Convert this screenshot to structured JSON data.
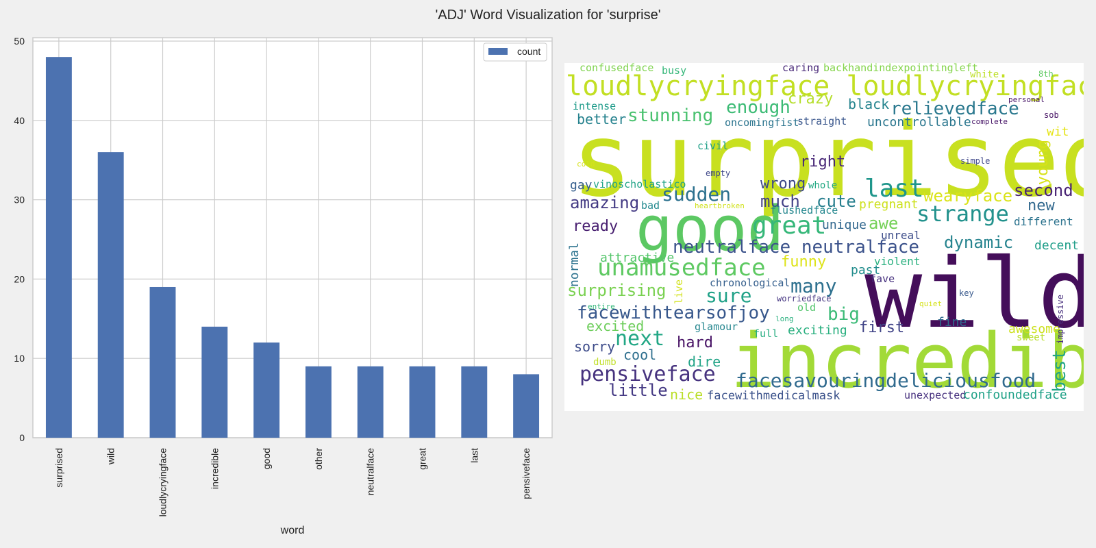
{
  "title": "'ADJ' Word Visualization for 'surprise'",
  "chart_data": [
    {
      "type": "bar",
      "categories": [
        "surprised",
        "wild",
        "loudlycryingface",
        "incredible",
        "good",
        "other",
        "neutralface",
        "great",
        "last",
        "pensiveface"
      ],
      "series": [
        {
          "name": "count",
          "values": [
            48,
            36,
            19,
            14,
            12,
            9,
            9,
            9,
            9,
            8
          ]
        }
      ],
      "xlabel": "word",
      "ylabel": "",
      "ylim": [
        0,
        50
      ],
      "yticks": [
        0,
        10,
        20,
        30,
        40,
        50
      ],
      "grid": true,
      "legend": "top-right",
      "bar_color": "#4c72b0"
    },
    {
      "type": "wordcloud",
      "background": "#ffffff",
      "words": [
        {
          "text": "surprised",
          "color": "#c8e020"
        },
        {
          "text": "wild",
          "color": "#440e5a"
        },
        {
          "text": "incredible",
          "color": "#a2da37"
        },
        {
          "text": "good",
          "color": "#5cc863"
        },
        {
          "text": "loudlycryingface loudlycryingface",
          "color": "#c2df23"
        },
        {
          "text": "great",
          "color": "#35b779"
        },
        {
          "text": "last",
          "color": "#1f968b"
        },
        {
          "text": "strange",
          "color": "#21918c"
        },
        {
          "text": "unamusedface",
          "color": "#5ec962"
        },
        {
          "text": "neutralface neutralface",
          "color": "#3b528b"
        },
        {
          "text": "pensiveface",
          "color": "#46327e"
        },
        {
          "text": "facesavouringdeliciousfood",
          "color": "#306a8e"
        },
        {
          "text": "facewithtearsofjoy",
          "color": "#38588c"
        },
        {
          "text": "stunning",
          "color": "#48c16e"
        },
        {
          "text": "enough",
          "color": "#3cbb75"
        },
        {
          "text": "relievedface",
          "color": "#2a788e"
        },
        {
          "text": "sudden",
          "color": "#2c718e"
        },
        {
          "text": "amazing",
          "color": "#443b84"
        },
        {
          "text": "wearyface",
          "color": "#dae319"
        },
        {
          "text": "second",
          "color": "#482374"
        },
        {
          "text": "crazy",
          "color": "#b5de2b"
        },
        {
          "text": "better",
          "color": "#26828e"
        },
        {
          "text": "black",
          "color": "#25848e"
        },
        {
          "text": "uncontrollable",
          "color": "#2a768e"
        },
        {
          "text": "young",
          "color": "#d8e219"
        },
        {
          "text": "wit",
          "color": "#e5e419"
        },
        {
          "text": "wrong",
          "color": "#3e4989"
        },
        {
          "text": "right",
          "color": "#482777"
        },
        {
          "text": "much",
          "color": "#424086"
        },
        {
          "text": "cute",
          "color": "#277f8e"
        },
        {
          "text": "awe",
          "color": "#73d056"
        },
        {
          "text": "new",
          "color": "#31688e"
        },
        {
          "text": "ready",
          "color": "#481f70"
        },
        {
          "text": "dynamic",
          "color": "#25838e"
        },
        {
          "text": "decent",
          "color": "#1f9e89"
        },
        {
          "text": "sure",
          "color": "#1fa187"
        },
        {
          "text": "many",
          "color": "#2d708e"
        },
        {
          "text": "surprising",
          "color": "#7ad151"
        },
        {
          "text": "big",
          "color": "#3aba76"
        },
        {
          "text": "funny",
          "color": "#dde318"
        },
        {
          "text": "next",
          "color": "#22a785"
        },
        {
          "text": "hard",
          "color": "#471164"
        },
        {
          "text": "first",
          "color": "#414487"
        },
        {
          "text": "best",
          "color": "#20a486"
        },
        {
          "text": "excited",
          "color": "#6ccd5a"
        },
        {
          "text": "exciting",
          "color": "#29af7f"
        },
        {
          "text": "sorry",
          "color": "#3e4c8a"
        },
        {
          "text": "cool",
          "color": "#2e6f8e"
        },
        {
          "text": "dire",
          "color": "#20a386"
        },
        {
          "text": "little",
          "color": "#443983"
        },
        {
          "text": "nice",
          "color": "#bade28"
        },
        {
          "text": "awesome",
          "color": "#cde11d"
        },
        {
          "text": "sweet",
          "color": "#b8de29"
        },
        {
          "text": "fine",
          "color": "#2f6b8e"
        },
        {
          "text": "attractive",
          "color": "#52c569"
        },
        {
          "text": "past",
          "color": "#228d8d"
        },
        {
          "text": "violent",
          "color": "#2ab07f"
        },
        {
          "text": "normal",
          "color": "#2c728e"
        },
        {
          "text": "chronological",
          "color": "#355f8d"
        },
        {
          "text": "unique",
          "color": "#31678e"
        },
        {
          "text": "unreal",
          "color": "#3d4d8a"
        },
        {
          "text": "different",
          "color": "#2c738e"
        },
        {
          "text": "pregnant",
          "color": "#cde11d"
        },
        {
          "text": "flushedface",
          "color": "#24878e"
        },
        {
          "text": "heartbroken",
          "color": "#d0e11c"
        },
        {
          "text": "bad",
          "color": "#23898e"
        },
        {
          "text": "gay",
          "color": "#355e8d"
        },
        {
          "text": "vinoscholastico",
          "color": "#20a386"
        },
        {
          "text": "whole",
          "color": "#23a983"
        },
        {
          "text": "civil",
          "color": "#1fa088"
        },
        {
          "text": "cold",
          "color": "#d5e21a"
        },
        {
          "text": "empty",
          "color": "#3f4788"
        },
        {
          "text": "simple",
          "color": "#3f4889"
        },
        {
          "text": "intense",
          "color": "#1e9b8a"
        },
        {
          "text": "oncomingfist",
          "color": "#2b748e"
        },
        {
          "text": "straight",
          "color": "#39568c"
        },
        {
          "text": "confusedface",
          "color": "#7fd34e"
        },
        {
          "text": "busy",
          "color": "#35b779"
        },
        {
          "text": "caring",
          "color": "#482878"
        },
        {
          "text": "backhandindexpointingleft",
          "color": "#84d44b"
        },
        {
          "text": "white",
          "color": "#bddf26"
        },
        {
          "text": "8th",
          "color": "#5ec962"
        },
        {
          "text": "personal",
          "color": "#481769"
        },
        {
          "text": "sob",
          "color": "#471365"
        },
        {
          "text": "complete",
          "color": "#481668"
        },
        {
          "text": "fave",
          "color": "#46307e"
        },
        {
          "text": "key",
          "color": "#38598c"
        },
        {
          "text": "live",
          "color": "#d2e21b"
        },
        {
          "text": "worriedface",
          "color": "#453581"
        },
        {
          "text": "old",
          "color": "#50c46a"
        },
        {
          "text": "long",
          "color": "#2ab07f"
        },
        {
          "text": "glamour",
          "color": "#24868e"
        },
        {
          "text": "full",
          "color": "#27ad81"
        },
        {
          "text": "quiet",
          "color": "#d5e21a"
        },
        {
          "text": "impressive",
          "color": "#472f7d"
        },
        {
          "text": "entire",
          "color": "#32b67a"
        },
        {
          "text": "dumb",
          "color": "#c0df25"
        },
        {
          "text": "facewithmedicalmask",
          "color": "#3b528b"
        },
        {
          "text": "unexpected",
          "color": "#46307e"
        },
        {
          "text": "confoundedface",
          "color": "#1fa187"
        }
      ]
    }
  ]
}
